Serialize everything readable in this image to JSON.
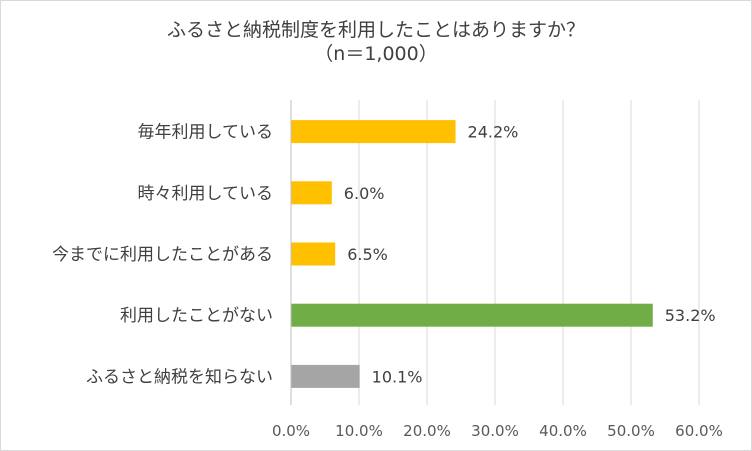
{
  "chart_data": {
    "type": "bar",
    "orientation": "horizontal",
    "title": "ふるさと納税制度を利用したことはありますか？",
    "subtitle": "（n＝1,000）",
    "categories": [
      "毎年利用している",
      "時々利用している",
      "今までに利用したことがある",
      "利用したことがない",
      "ふるさと納税を知らない"
    ],
    "values": [
      24.2,
      6.0,
      6.5,
      53.2,
      10.1
    ],
    "value_labels": [
      "24.2%",
      "6.0%",
      "6.5%",
      "53.2%",
      "10.1%"
    ],
    "bar_colors": [
      "#FFC000",
      "#FFC000",
      "#FFC000",
      "#70AD47",
      "#A5A5A5"
    ],
    "xlim": [
      0,
      60
    ],
    "xticks": [
      0,
      10,
      20,
      30,
      40,
      50,
      60
    ],
    "xtick_labels": [
      "0.0%",
      "10.0%",
      "20.0%",
      "30.0%",
      "40.0%",
      "50.0%",
      "60.0%"
    ],
    "grid": true,
    "legend": "none"
  }
}
